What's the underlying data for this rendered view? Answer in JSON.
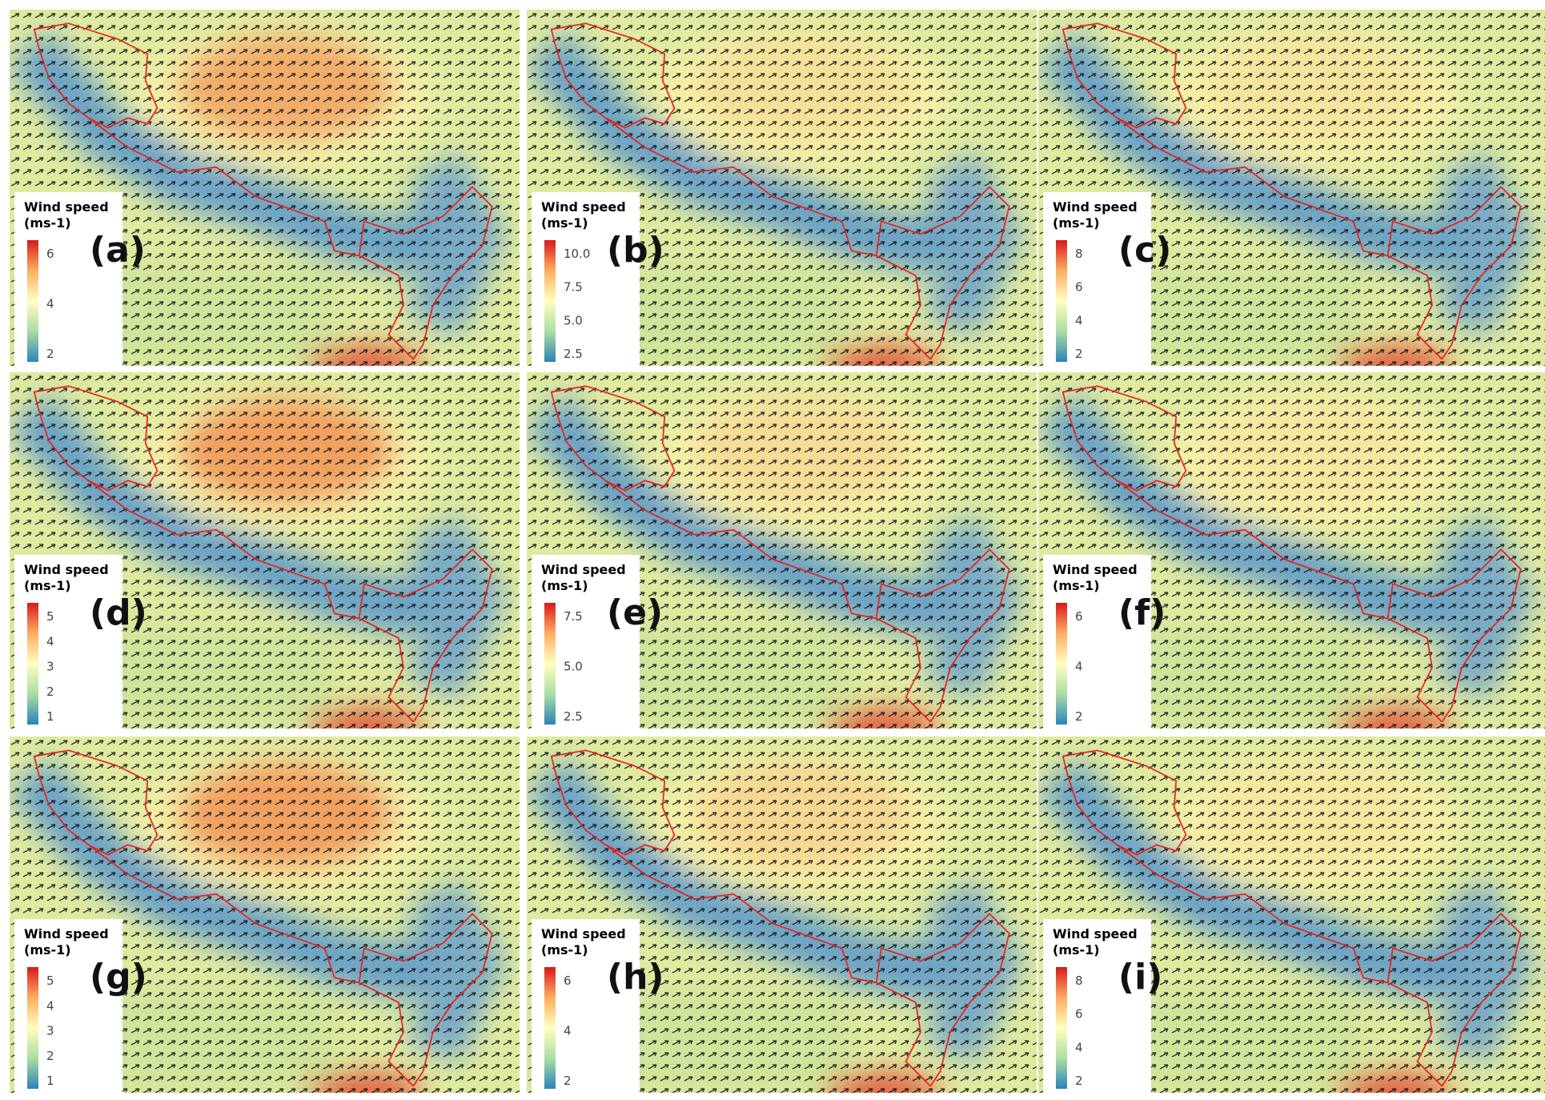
{
  "panels": [
    {
      "label": "(a)",
      "legend": {
        "title": "Wind speed",
        "unit": "(ms-1)",
        "ticks": [
          "6",
          "4",
          "2"
        ]
      }
    },
    {
      "label": "(b)",
      "legend": {
        "title": "Wind speed",
        "unit": "(ms-1)",
        "ticks": [
          "10.0",
          "7.5",
          "5.0",
          "2.5"
        ]
      }
    },
    {
      "label": "(c)",
      "legend": {
        "title": "Wind speed",
        "unit": "(ms-1)",
        "ticks": [
          "8",
          "6",
          "4",
          "2"
        ]
      }
    },
    {
      "label": "(d)",
      "legend": {
        "title": "Wind speed",
        "unit": "(ms-1)",
        "ticks": [
          "5",
          "4",
          "3",
          "2",
          "1"
        ]
      }
    },
    {
      "label": "(e)",
      "legend": {
        "title": "Wind speed",
        "unit": "(ms-1)",
        "ticks": [
          "7.5",
          "5.0",
          "2.5"
        ]
      }
    },
    {
      "label": "(f)",
      "legend": {
        "title": "Wind speed",
        "unit": "(ms-1)",
        "ticks": [
          "6",
          "4",
          "2"
        ]
      }
    },
    {
      "label": "(g)",
      "legend": {
        "title": "Wind speed",
        "unit": "(ms-1)",
        "ticks": [
          "5",
          "4",
          "3",
          "2",
          "1"
        ]
      }
    },
    {
      "label": "(h)",
      "legend": {
        "title": "Wind speed",
        "unit": "(ms-1)",
        "ticks": [
          "6",
          "4",
          "2"
        ]
      }
    },
    {
      "label": "(i)",
      "legend": {
        "title": "Wind speed",
        "unit": "(ms-1)",
        "ticks": [
          "8",
          "6",
          "4",
          "2"
        ]
      }
    }
  ]
}
